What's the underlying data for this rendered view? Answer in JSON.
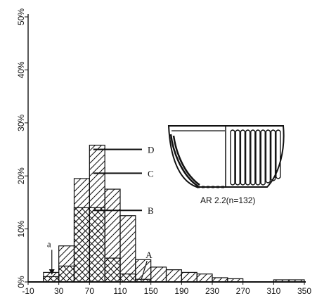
{
  "chart_data": {
    "type": "bar",
    "bin_width": 20,
    "x_ticks": [
      "-10",
      "30",
      "70",
      "110",
      "150",
      "190",
      "230",
      "270",
      "310",
      "350"
    ],
    "y_ticks": [
      "0%",
      "10%",
      "20%",
      "30%",
      "40%",
      "50%"
    ],
    "xlim": [
      -10,
      350
    ],
    "ylim": [
      0,
      50
    ],
    "bins": [
      {
        "start": 10,
        "total": 1.8,
        "inner": 1.0
      },
      {
        "start": 30,
        "total": 6.8,
        "inner": 3.0
      },
      {
        "start": 50,
        "total": 19.5,
        "inner": 14.0
      },
      {
        "start": 70,
        "total": 25.8,
        "inner": 14.0
      },
      {
        "start": 90,
        "total": 17.5,
        "inner": 4.5
      },
      {
        "start": 110,
        "total": 12.5,
        "inner": 1.5
      },
      {
        "start": 130,
        "total": 4.2,
        "inner": 0.5
      },
      {
        "start": 150,
        "total": 2.8,
        "inner": 0
      },
      {
        "start": 170,
        "total": 2.3,
        "inner": 0
      },
      {
        "start": 190,
        "total": 1.8,
        "inner": 0
      },
      {
        "start": 210,
        "total": 1.5,
        "inner": 0
      },
      {
        "start": 230,
        "total": 0.8,
        "inner": 0
      },
      {
        "start": 250,
        "total": 0.6,
        "inner": 0
      },
      {
        "start": 310,
        "total": 0.4,
        "inner": 0
      },
      {
        "start": 330,
        "total": 0.4,
        "inner": 0
      }
    ],
    "annotations": [
      {
        "label": "D",
        "x": 75,
        "y": 25
      },
      {
        "label": "C",
        "x": 75,
        "y": 20.5
      },
      {
        "label": "B",
        "x": 75,
        "y": 13.5
      },
      {
        "label": "A",
        "x": 145,
        "y": 4.5
      },
      {
        "label": "a",
        "x": 20,
        "y": 5
      }
    ],
    "inset_caption": "AR 2.2(n=132)"
  }
}
